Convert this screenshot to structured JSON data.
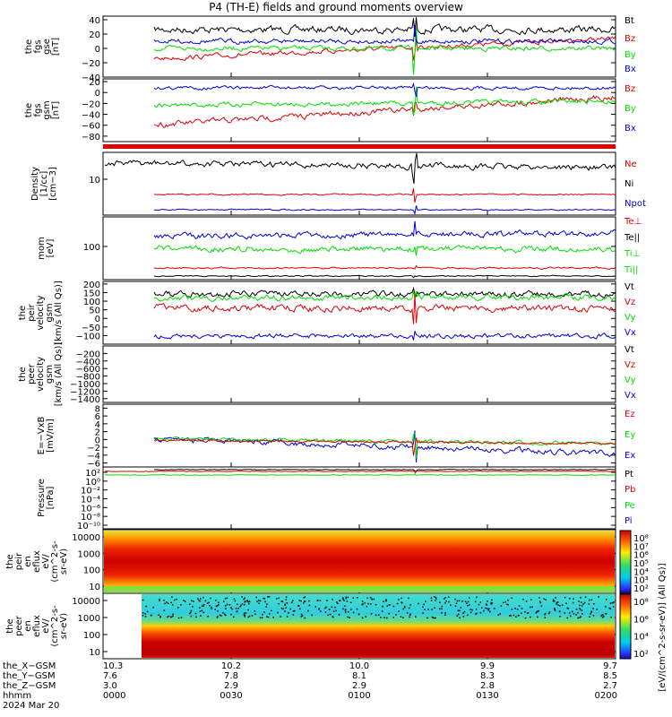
{
  "title": "P4 (TH-E) fields and ground moments overview",
  "colors": {
    "black": "#000000",
    "red": "#e00000",
    "green": "#00e000",
    "blue": "#0000e0"
  },
  "time_axis": {
    "start": "0000",
    "end": "0200",
    "ticks": [
      "0000",
      "0030",
      "0100",
      "0130",
      "0200"
    ]
  },
  "chart_data": [
    {
      "id": "fgs",
      "type": "line",
      "ylabel": [
        "the",
        "fgs",
        "gse",
        "[nT]"
      ],
      "yrange": [
        -40,
        45
      ],
      "ticks": [
        "40",
        "20",
        "0",
        "−20",
        "−40"
      ],
      "tick_values": [
        40,
        20,
        0,
        -20,
        -40
      ],
      "series": [
        {
          "name": "Bt",
          "color": "black",
          "level": 23,
          "noise": 4
        },
        {
          "name": "Bz",
          "color": "red",
          "level": -15,
          "noise": 4
        },
        {
          "name": "By",
          "color": "green",
          "level": -2,
          "noise": 3
        },
        {
          "name": "Bx",
          "color": "blue",
          "level": 7,
          "noise": 2
        }
      ]
    },
    {
      "id": "fgs_gsm",
      "type": "line",
      "ylabel": [
        "the",
        "fgs",
        "gsm",
        "[nT]"
      ],
      "yrange": [
        -90,
        25
      ],
      "ticks": [
        "20",
        "0",
        "−20",
        "−40",
        "−60",
        "−80"
      ],
      "tick_values": [
        20,
        0,
        -20,
        -40,
        -60,
        -80
      ],
      "series": [
        {
          "name": "Bz",
          "color": "red",
          "level": -62,
          "noise": 4
        },
        {
          "name": "By",
          "color": "green",
          "level": -20,
          "noise": 3
        },
        {
          "name": "Bx",
          "color": "blue",
          "level": 7,
          "noise": 2
        }
      ]
    },
    {
      "id": "density",
      "type": "line",
      "log": true,
      "ylabel": [
        "Density",
        "[1/cc]",
        "[cm−3]"
      ],
      "ticks": [
        "10"
      ],
      "series": [
        {
          "name": "Ne",
          "color": "red"
        },
        {
          "name": "Ni",
          "color": "black"
        },
        {
          "name": "Npot",
          "color": "blue"
        }
      ]
    },
    {
      "id": "temp",
      "type": "line",
      "log": true,
      "ylabel": [
        "mom",
        "[eV]"
      ],
      "ticks": [
        "100"
      ],
      "series": [
        {
          "name": "Te⊥",
          "color": "red"
        },
        {
          "name": "Te||",
          "color": "black"
        },
        {
          "name": "Ti⊥",
          "color": "green"
        },
        {
          "name": "Ti||",
          "color": "green"
        }
      ]
    },
    {
      "id": "vel",
      "type": "line",
      "ylabel": [
        "the",
        "peir",
        "velocity",
        "gsm",
        "[km/s (All Qs)]"
      ],
      "yrange": [
        -150,
        215
      ],
      "ticks": [
        "200",
        "150",
        "100",
        "50",
        "0",
        "−50",
        "−100"
      ],
      "tick_values": [
        200,
        150,
        100,
        50,
        0,
        -50,
        -100
      ],
      "series": [
        {
          "name": "Vt",
          "color": "black",
          "level": 160,
          "noise": 15
        },
        {
          "name": "Vz",
          "color": "red",
          "level": 70,
          "noise": 15
        },
        {
          "name": "Vy",
          "color": "green",
          "level": 130,
          "noise": 15
        },
        {
          "name": "Vx",
          "color": "blue",
          "level": -90,
          "noise": 10
        }
      ]
    },
    {
      "id": "veer",
      "type": "line",
      "ylabel": [
        "the",
        "peer",
        "velocity",
        "gsm",
        "[km/s (All Qs)]"
      ],
      "yrange": [
        -1500,
        0
      ],
      "ticks": [
        "−200",
        "−400",
        "−600",
        "−800",
        "−1000",
        "−1200",
        "−1400"
      ],
      "tick_values": [
        -200,
        -400,
        -600,
        -800,
        -1000,
        -1200,
        -1400
      ],
      "series": [
        {
          "name": "Vt",
          "color": "black"
        },
        {
          "name": "Vz",
          "color": "red"
        },
        {
          "name": "Vy",
          "color": "green"
        },
        {
          "name": "Vx",
          "color": "blue"
        }
      ]
    },
    {
      "id": "efield",
      "type": "line",
      "ylabel": [
        "E=−VxB",
        "[mV/m]"
      ],
      "yrange": [
        -7,
        9
      ],
      "ticks": [
        "8",
        "6",
        "4",
        "2",
        "0",
        "−2",
        "−4",
        "−6"
      ],
      "tick_values": [
        8,
        6,
        4,
        2,
        0,
        -2,
        -4,
        -6
      ],
      "series": [
        {
          "name": "Ez",
          "color": "red"
        },
        {
          "name": "Ey",
          "color": "green"
        },
        {
          "name": "Ex",
          "color": "blue"
        }
      ]
    },
    {
      "id": "pressure",
      "type": "line",
      "log": true,
      "ylabel": [
        "Pressure",
        "[nPa]"
      ],
      "ticks": [
        "10²",
        "10⁰",
        "10⁻²",
        "10⁻⁴",
        "10⁻⁶",
        "10⁻⁸",
        "10⁻¹⁰"
      ],
      "series": [
        {
          "name": "Pt",
          "color": "black"
        },
        {
          "name": "Pb",
          "color": "red"
        },
        {
          "name": "Pe",
          "color": "green"
        },
        {
          "name": "Pi",
          "color": "blue"
        }
      ]
    },
    {
      "id": "peir_spec",
      "type": "heatmap",
      "ylabel": [
        "the",
        "peir",
        "en",
        "eflux",
        "eV/",
        "(cm^2-s-",
        "sr-eV)"
      ],
      "ticks": [
        "10000",
        "1000",
        "100",
        "10"
      ]
    },
    {
      "id": "peer_spec",
      "type": "heatmap",
      "ylabel": [
        "the",
        "peer",
        "en",
        "eflux",
        "eV/",
        "(cm^2-s-",
        "sr-eV)"
      ],
      "ticks": [
        "10000",
        "1000",
        "100",
        "10"
      ]
    }
  ],
  "colorbar": {
    "ticks": [
      "10⁸",
      "10⁷",
      "10⁶",
      "10⁵",
      "10⁴",
      "10³",
      "10²"
    ],
    "ticks_lower": [
      "10⁸",
      "10⁶",
      "10⁴",
      "10²"
    ],
    "label": "[eV/(cm^2-s-sr-eV)] (All Qs)]"
  },
  "ephemeris": {
    "rows": [
      {
        "label": "the_X−GSM",
        "values": [
          "10.3",
          "10.2",
          "10.0",
          "9.9",
          "9.7"
        ]
      },
      {
        "label": "the_Y−GSM",
        "values": [
          "7.6",
          "7.8",
          "8.1",
          "8.3",
          "8.5"
        ]
      },
      {
        "label": "the_Z−GSM",
        "values": [
          "3.0",
          "2.9",
          "2.9",
          "2.8",
          "2.7"
        ]
      },
      {
        "label": "hhmm",
        "values": [
          "0000",
          "0030",
          "0100",
          "0130",
          "0200"
        ]
      }
    ],
    "date": "2024 Mar 20"
  },
  "side_label": "[eV/(cm^2-s-sr-eV)]"
}
